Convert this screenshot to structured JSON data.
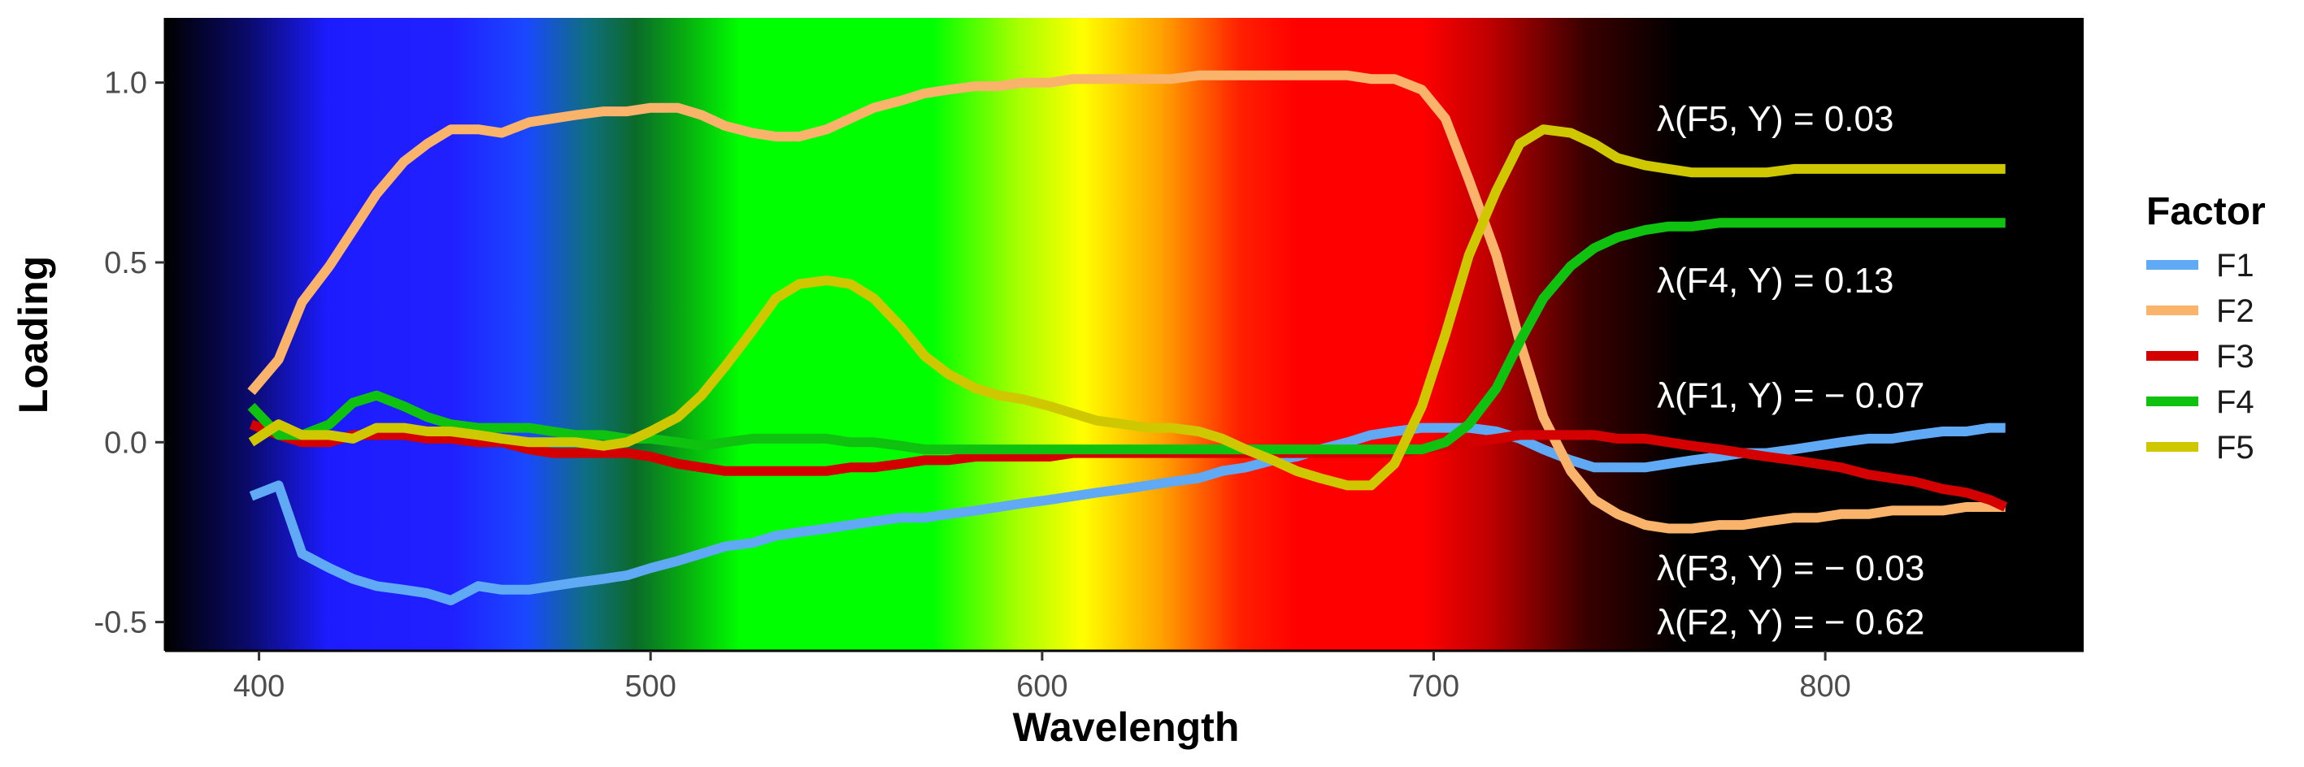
{
  "chart_data": {
    "type": "line",
    "title": "",
    "xlabel": "Wavelength",
    "ylabel": "Loading",
    "xlim": [
      376,
      866
    ],
    "ylim": [
      -0.58,
      1.18
    ],
    "x_ticks": [
      400,
      500,
      600,
      700,
      800
    ],
    "y_ticks": [
      1.0,
      0.5,
      0.0,
      -0.5
    ],
    "x_tick_labels": [
      "400",
      "500",
      "600",
      "700",
      "800"
    ],
    "y_tick_labels": [
      "1.0",
      "0.5",
      "0.0",
      "-0.5"
    ],
    "grid": false,
    "background": "visible spectrum gradient (violet-blue-green-yellow-red-black) across wavelength",
    "legend": {
      "title": "Factor",
      "position": "right",
      "entries": [
        "F1",
        "F2",
        "F3",
        "F4",
        "F5"
      ]
    },
    "series": [
      {
        "name": "F1",
        "color": "#5fa9f5",
        "x": [
          398,
          405,
          411,
          418,
          424,
          430,
          437,
          443,
          449,
          456,
          462,
          469,
          475,
          481,
          488,
          494,
          500,
          507,
          513,
          519,
          526,
          532,
          538,
          545,
          551,
          557,
          564,
          570,
          576,
          583,
          589,
          595,
          602,
          608,
          614,
          621,
          627,
          633,
          640,
          646,
          652,
          659,
          665,
          671,
          678,
          684,
          690,
          697,
          703,
          709,
          716,
          722,
          728,
          735,
          741,
          747,
          754,
          760,
          766,
          773,
          779,
          785,
          792,
          798,
          804,
          811,
          817,
          823,
          830,
          836,
          842,
          846
        ],
        "y": [
          -0.15,
          -0.12,
          -0.31,
          -0.35,
          -0.38,
          -0.4,
          -0.41,
          -0.42,
          -0.44,
          -0.4,
          -0.41,
          -0.41,
          -0.4,
          -0.39,
          -0.38,
          -0.37,
          -0.35,
          -0.33,
          -0.31,
          -0.29,
          -0.28,
          -0.26,
          -0.25,
          -0.24,
          -0.23,
          -0.22,
          -0.21,
          -0.21,
          -0.2,
          -0.19,
          -0.18,
          -0.17,
          -0.16,
          -0.15,
          -0.14,
          -0.13,
          -0.12,
          -0.11,
          -0.1,
          -0.08,
          -0.07,
          -0.05,
          -0.04,
          -0.02,
          0.0,
          0.02,
          0.03,
          0.04,
          0.04,
          0.04,
          0.03,
          0.01,
          -0.02,
          -0.05,
          -0.07,
          -0.07,
          -0.07,
          -0.06,
          -0.05,
          -0.04,
          -0.03,
          -0.03,
          -0.02,
          -0.01,
          0.0,
          0.01,
          0.01,
          0.02,
          0.03,
          0.03,
          0.04,
          0.04
        ]
      },
      {
        "name": "F2",
        "color": "#f9b36b",
        "x": [
          398,
          405,
          411,
          418,
          424,
          430,
          437,
          443,
          449,
          456,
          462,
          469,
          475,
          481,
          488,
          494,
          500,
          507,
          513,
          519,
          526,
          532,
          538,
          545,
          551,
          557,
          564,
          570,
          576,
          583,
          589,
          595,
          602,
          608,
          614,
          621,
          627,
          633,
          640,
          646,
          652,
          659,
          665,
          671,
          678,
          684,
          690,
          697,
          703,
          709,
          716,
          722,
          728,
          735,
          741,
          747,
          754,
          760,
          766,
          773,
          779,
          785,
          792,
          798,
          804,
          811,
          817,
          823,
          830,
          836,
          842,
          846
        ],
        "y": [
          0.14,
          0.23,
          0.39,
          0.49,
          0.59,
          0.69,
          0.78,
          0.83,
          0.87,
          0.87,
          0.86,
          0.89,
          0.9,
          0.91,
          0.92,
          0.92,
          0.93,
          0.93,
          0.91,
          0.88,
          0.86,
          0.85,
          0.85,
          0.87,
          0.9,
          0.93,
          0.95,
          0.97,
          0.98,
          0.99,
          0.99,
          1.0,
          1.0,
          1.01,
          1.01,
          1.01,
          1.01,
          1.01,
          1.02,
          1.02,
          1.02,
          1.02,
          1.02,
          1.02,
          1.02,
          1.01,
          1.01,
          0.98,
          0.9,
          0.73,
          0.52,
          0.28,
          0.07,
          -0.08,
          -0.16,
          -0.2,
          -0.23,
          -0.24,
          -0.24,
          -0.23,
          -0.23,
          -0.22,
          -0.21,
          -0.21,
          -0.2,
          -0.2,
          -0.19,
          -0.19,
          -0.19,
          -0.18,
          -0.18,
          -0.18
        ]
      },
      {
        "name": "F3",
        "color": "#d40000",
        "x": [
          398,
          405,
          411,
          418,
          424,
          430,
          437,
          443,
          449,
          456,
          462,
          469,
          475,
          481,
          488,
          494,
          500,
          507,
          513,
          519,
          526,
          532,
          538,
          545,
          551,
          557,
          564,
          570,
          576,
          583,
          589,
          595,
          602,
          608,
          614,
          621,
          627,
          633,
          640,
          646,
          652,
          659,
          665,
          671,
          678,
          684,
          690,
          697,
          703,
          709,
          716,
          722,
          728,
          735,
          741,
          747,
          754,
          760,
          766,
          773,
          779,
          785,
          792,
          798,
          804,
          811,
          817,
          823,
          830,
          836,
          842,
          846
        ],
        "y": [
          0.05,
          0.02,
          0.0,
          0.0,
          0.02,
          0.02,
          0.02,
          0.01,
          0.01,
          0.0,
          0.0,
          -0.02,
          -0.03,
          -0.03,
          -0.03,
          -0.03,
          -0.04,
          -0.06,
          -0.07,
          -0.08,
          -0.08,
          -0.08,
          -0.08,
          -0.08,
          -0.07,
          -0.07,
          -0.06,
          -0.05,
          -0.05,
          -0.04,
          -0.04,
          -0.04,
          -0.04,
          -0.03,
          -0.03,
          -0.03,
          -0.03,
          -0.03,
          -0.03,
          -0.03,
          -0.03,
          -0.03,
          -0.03,
          -0.03,
          -0.03,
          -0.03,
          -0.03,
          -0.02,
          -0.01,
          0.0,
          0.01,
          0.02,
          0.02,
          0.02,
          0.02,
          0.01,
          0.01,
          0.0,
          -0.01,
          -0.02,
          -0.03,
          -0.04,
          -0.05,
          -0.06,
          -0.07,
          -0.09,
          -0.1,
          -0.11,
          -0.13,
          -0.14,
          -0.16,
          -0.18
        ]
      },
      {
        "name": "F4",
        "color": "#10c210",
        "x": [
          398,
          405,
          411,
          418,
          424,
          430,
          437,
          443,
          449,
          456,
          462,
          469,
          475,
          481,
          488,
          494,
          500,
          507,
          513,
          519,
          526,
          532,
          538,
          545,
          551,
          557,
          564,
          570,
          576,
          583,
          589,
          595,
          602,
          608,
          614,
          621,
          627,
          633,
          640,
          646,
          652,
          659,
          665,
          671,
          678,
          684,
          690,
          697,
          703,
          709,
          716,
          722,
          728,
          735,
          741,
          747,
          754,
          760,
          766,
          773,
          779,
          785,
          792,
          798,
          804,
          811,
          817,
          823,
          830,
          836,
          842,
          846
        ],
        "y": [
          0.1,
          0.02,
          0.02,
          0.05,
          0.11,
          0.13,
          0.1,
          0.07,
          0.05,
          0.04,
          0.04,
          0.04,
          0.03,
          0.02,
          0.02,
          0.01,
          0.01,
          0.0,
          -0.01,
          0.0,
          0.01,
          0.01,
          0.01,
          0.01,
          0.0,
          0.0,
          -0.01,
          -0.02,
          -0.02,
          -0.02,
          -0.02,
          -0.02,
          -0.02,
          -0.02,
          -0.02,
          -0.02,
          -0.02,
          -0.02,
          -0.02,
          -0.02,
          -0.02,
          -0.02,
          -0.02,
          -0.02,
          -0.02,
          -0.02,
          -0.02,
          -0.02,
          0.0,
          0.05,
          0.15,
          0.28,
          0.4,
          0.49,
          0.54,
          0.57,
          0.59,
          0.6,
          0.6,
          0.61,
          0.61,
          0.61,
          0.61,
          0.61,
          0.61,
          0.61,
          0.61,
          0.61,
          0.61,
          0.61,
          0.61,
          0.61
        ]
      },
      {
        "name": "F5",
        "color": "#cfc800",
        "x": [
          398,
          405,
          411,
          418,
          424,
          430,
          437,
          443,
          449,
          456,
          462,
          469,
          475,
          481,
          488,
          494,
          500,
          507,
          513,
          519,
          526,
          532,
          538,
          545,
          551,
          557,
          564,
          570,
          576,
          583,
          589,
          595,
          602,
          608,
          614,
          621,
          627,
          633,
          640,
          646,
          652,
          659,
          665,
          671,
          678,
          684,
          690,
          697,
          703,
          709,
          716,
          722,
          728,
          735,
          741,
          747,
          754,
          760,
          766,
          773,
          779,
          785,
          792,
          798,
          804,
          811,
          817,
          823,
          830,
          836,
          842,
          846
        ],
        "y": [
          0.0,
          0.05,
          0.02,
          0.02,
          0.01,
          0.04,
          0.04,
          0.03,
          0.03,
          0.02,
          0.01,
          0.0,
          0.0,
          0.0,
          -0.01,
          0.0,
          0.03,
          0.07,
          0.13,
          0.21,
          0.31,
          0.4,
          0.44,
          0.45,
          0.44,
          0.4,
          0.32,
          0.24,
          0.19,
          0.15,
          0.13,
          0.12,
          0.1,
          0.08,
          0.06,
          0.05,
          0.04,
          0.04,
          0.03,
          0.01,
          -0.02,
          -0.05,
          -0.08,
          -0.1,
          -0.12,
          -0.12,
          -0.06,
          0.1,
          0.3,
          0.52,
          0.7,
          0.83,
          0.87,
          0.86,
          0.83,
          0.79,
          0.77,
          0.76,
          0.75,
          0.75,
          0.75,
          0.75,
          0.76,
          0.76,
          0.76,
          0.76,
          0.76,
          0.76,
          0.76,
          0.76,
          0.76,
          0.76
        ]
      }
    ],
    "annotations": [
      {
        "text": "λ(F5, Y) = 0.03",
        "x": 757,
        "y": 0.9
      },
      {
        "text": "λ(F4, Y) = 0.13",
        "x": 757,
        "y": 0.45
      },
      {
        "text": "λ(F1, Y) = − 0.07",
        "x": 757,
        "y": 0.13
      },
      {
        "text": "λ(F3, Y) = − 0.03",
        "x": 757,
        "y": -0.35
      },
      {
        "text": "λ(F2, Y) = − 0.62",
        "x": 757,
        "y": -0.5
      }
    ]
  }
}
